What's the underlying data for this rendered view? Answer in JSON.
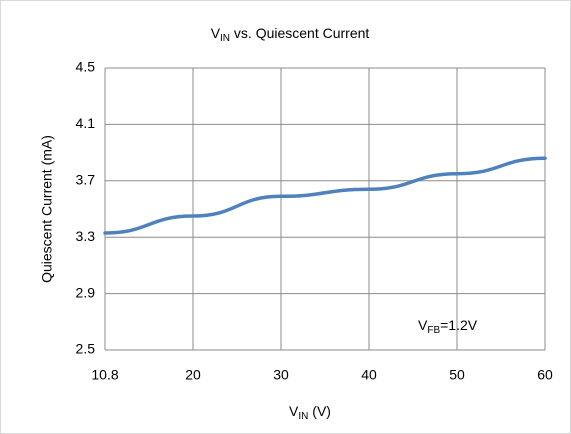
{
  "chart_data": {
    "type": "line",
    "title": {
      "main": "V",
      "sub": "IN",
      "rest": " vs. Quiescent Current"
    },
    "xlabel": {
      "main": "V",
      "sub": "IN",
      "rest": " (V)"
    },
    "ylabel": "Quiescent Current (mA)",
    "annotation": {
      "main": "V",
      "sub": "FB",
      "rest": "=1.2V"
    },
    "categories": [
      "10.8",
      "20",
      "30",
      "40",
      "50",
      "60"
    ],
    "series": [
      {
        "name": "Quiescent Current",
        "color": "#4f81bd",
        "values": [
          3.33,
          3.45,
          3.59,
          3.64,
          3.75,
          3.86
        ]
      }
    ],
    "ylim": [
      2.5,
      4.5
    ],
    "yticks": [
      2.5,
      2.9,
      3.3,
      3.7,
      4.1,
      4.5
    ],
    "grid": true
  }
}
